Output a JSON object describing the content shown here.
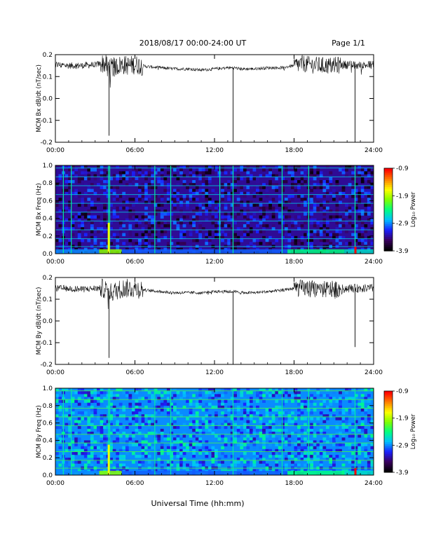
{
  "header": {
    "title": "2018/08/17  00:00-24:00 UT",
    "page": "Page 1/1"
  },
  "xlabel": "Universal Time (hh:mm)",
  "x_ticks": [
    "00:00",
    "06:00",
    "12:00",
    "18:00",
    "24:00"
  ],
  "colorbar": {
    "label": "Log₁₀ Power",
    "ticks": [
      "-0.9",
      "-1.9",
      "-2.9",
      "-3.9"
    ],
    "range": [
      -3.9,
      -0.9
    ],
    "colormap": [
      "#000000",
      "#3a0060",
      "#1a20ff",
      "#00c0ff",
      "#00ff80",
      "#80ff00",
      "#ffff00",
      "#ff8000",
      "#ff0000"
    ]
  },
  "chart_data": [
    {
      "type": "line",
      "ylabel": "MCM Bx dB/dt (nT/sec)",
      "x_range_hours": [
        0,
        24
      ],
      "ylim": [
        -0.2,
        0.2
      ],
      "y_ticks": [
        "0.2",
        "0.1",
        "0.0",
        "-0.1",
        "-0.2"
      ],
      "series": [
        {
          "x": [
            0,
            1,
            2,
            3,
            3.6,
            4,
            4.2,
            5,
            5.5,
            6,
            6.5,
            7,
            8,
            9,
            10,
            11,
            12,
            13,
            13.5,
            14,
            15,
            16,
            17,
            18,
            18.7,
            19,
            20,
            21,
            22,
            22.6,
            23,
            24
          ],
          "y": [
            0.155,
            0.15,
            0.15,
            0.155,
            0.16,
            0.15,
            0.14,
            0.155,
            0.15,
            0.155,
            0.15,
            0.145,
            0.14,
            0.135,
            0.135,
            0.13,
            0.135,
            0.14,
            0.14,
            0.135,
            0.135,
            0.14,
            0.14,
            0.15,
            0.16,
            0.155,
            0.15,
            0.15,
            0.155,
            0.15,
            0.15,
            0.155
          ],
          "spikes": [
            {
              "x": 4.05,
              "y": -0.17
            },
            {
              "x": 13.4,
              "y": -0.2
            },
            {
              "x": 22.6,
              "y": -0.2
            }
          ]
        }
      ]
    },
    {
      "type": "heatmap",
      "ylabel": "MCM Bx Freq (Hz)",
      "x_range_hours": [
        0,
        24
      ],
      "ylim": [
        0,
        1.0
      ],
      "y_ticks": [
        "1.0",
        "0.8",
        "0.6",
        "0.4",
        "0.2",
        "0.0"
      ],
      "background_level": -3.4,
      "vertical_lines_hours": [
        0.6,
        1.2,
        4.0,
        4.1,
        7.5,
        8.7,
        12.4,
        13.4,
        17.1,
        19.1,
        22.6
      ],
      "harmonic_freqs_hz": [
        0.08,
        0.17,
        0.27,
        0.37,
        0.47,
        0.57,
        0.67,
        0.77,
        0.87,
        0.97
      ]
    },
    {
      "type": "line",
      "ylabel": "MCM By dB/dt (nT/sec)",
      "x_range_hours": [
        0,
        24
      ],
      "ylim": [
        -0.2,
        0.2
      ],
      "y_ticks": [
        "0.2",
        "0.1",
        "0.0",
        "-0.1",
        "-0.2"
      ],
      "series": [
        {
          "x": [
            0,
            1,
            2,
            3,
            3.6,
            4,
            4.2,
            5,
            5.5,
            6,
            6.5,
            7,
            8,
            9,
            10,
            11,
            12,
            13,
            13.5,
            14,
            15,
            16,
            17,
            18,
            18.7,
            19,
            20,
            21,
            22,
            22.6,
            23,
            24
          ],
          "y": [
            0.15,
            0.15,
            0.145,
            0.15,
            0.15,
            0.14,
            0.13,
            0.15,
            0.15,
            0.15,
            0.145,
            0.14,
            0.135,
            0.13,
            0.13,
            0.13,
            0.135,
            0.135,
            0.135,
            0.13,
            0.13,
            0.135,
            0.14,
            0.15,
            0.15,
            0.15,
            0.145,
            0.145,
            0.15,
            0.15,
            0.15,
            0.15
          ],
          "spikes": [
            {
              "x": 4.05,
              "y": -0.17
            },
            {
              "x": 13.4,
              "y": -0.2
            },
            {
              "x": 22.6,
              "y": -0.12
            }
          ]
        }
      ]
    },
    {
      "type": "heatmap",
      "ylabel": "MCM By Freq (Hz)",
      "x_range_hours": [
        0,
        24
      ],
      "ylim": [
        0,
        1.0
      ],
      "y_ticks": [
        "1.0",
        "0.8",
        "0.6",
        "0.4",
        "0.2",
        "0.0"
      ],
      "background_level": -2.9,
      "vertical_lines_hours": [
        0.6,
        1.2,
        4.0,
        4.1,
        7.5,
        8.7,
        13.4,
        17.1,
        19.1,
        22.6
      ],
      "harmonic_freqs_hz": [
        0.08,
        0.17,
        0.27,
        0.37,
        0.47,
        0.57,
        0.67,
        0.77,
        0.87,
        0.97
      ]
    }
  ]
}
